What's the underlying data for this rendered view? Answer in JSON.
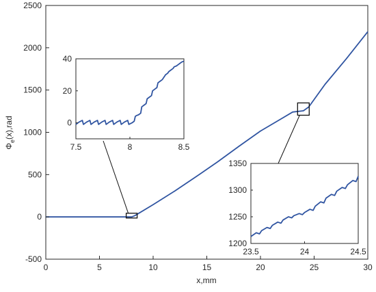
{
  "chart_data": [
    {
      "id": "main",
      "type": "line",
      "xlabel": "x,mm",
      "ylabel": "Φe(x),rad",
      "ylabel_parts": {
        "main": "Φ",
        "sub": "e",
        "tail": "(x),rad"
      },
      "xlim": [
        0,
        30
      ],
      "ylim": [
        -500,
        2500
      ],
      "xticks": [
        0,
        5,
        10,
        15,
        20,
        25,
        30
      ],
      "yticks": [
        -500,
        0,
        500,
        1000,
        1500,
        2000,
        2500
      ],
      "xtick_labels": [
        "0",
        "5",
        "10",
        "15",
        "20",
        "25",
        "30"
      ],
      "ytick_labels": [
        "-500",
        "0",
        "500",
        "1000",
        "1500",
        "2000",
        "2500"
      ],
      "series": [
        {
          "color": "#2f54a1",
          "x": [
            0,
            8.0,
            8.3,
            10,
            12,
            14,
            16,
            18,
            20,
            22,
            23,
            24,
            24.5,
            26,
            28,
            30
          ],
          "y": [
            0,
            0,
            15,
            145,
            305,
            475,
            650,
            835,
            1015,
            1165,
            1240,
            1255,
            1300,
            1565,
            1870,
            2190
          ]
        }
      ],
      "zoom_regions": [
        {
          "xlim": [
            7.5,
            8.5
          ],
          "ylim": [
            -10,
            40
          ]
        },
        {
          "xlim": [
            23.5,
            24.5
          ],
          "ylim": [
            1200,
            1350
          ]
        }
      ]
    },
    {
      "id": "inset-1",
      "type": "line",
      "xlim": [
        7.5,
        8.5
      ],
      "ylim": [
        -10,
        40
      ],
      "xticks": [
        7.5,
        8,
        8.5
      ],
      "yticks": [
        0,
        20,
        40
      ],
      "xtick_labels": [
        "7.5",
        "8",
        "8.5"
      ],
      "ytick_labels": [
        "0",
        "20",
        "40"
      ],
      "series": [
        {
          "color": "#2f54a1",
          "x": [
            7.5,
            7.53,
            7.56,
            7.57,
            7.6,
            7.63,
            7.64,
            7.67,
            7.7,
            7.71,
            7.74,
            7.77,
            7.78,
            7.81,
            7.84,
            7.85,
            7.88,
            7.91,
            7.92,
            7.95,
            7.98,
            7.99,
            8.02,
            8.04,
            8.05,
            8.06,
            8.08,
            8.1,
            8.11,
            8.13,
            8.15,
            8.16,
            8.18,
            8.2,
            8.21,
            8.23,
            8.25,
            8.26,
            8.28,
            8.3,
            8.31,
            8.33,
            8.35,
            8.36,
            8.38,
            8.4,
            8.41,
            8.43,
            8.45,
            8.46,
            8.48,
            8.5
          ],
          "y": [
            -1,
            0.5,
            1.5,
            -1,
            0.5,
            1.5,
            -1,
            0.5,
            1.5,
            -1,
            0.5,
            1.5,
            -1,
            0.5,
            1.5,
            -1,
            0.5,
            1.5,
            -1,
            0.5,
            1.5,
            -1,
            0,
            1,
            4,
            4.5,
            5,
            6,
            10,
            11,
            12,
            15,
            16,
            17,
            20,
            21,
            22,
            25,
            26,
            27,
            28,
            30,
            31,
            32,
            33,
            34,
            35,
            35.5,
            36.5,
            37,
            38,
            38.5
          ]
        }
      ]
    },
    {
      "id": "inset-2",
      "type": "line",
      "xlim": [
        23.5,
        24.5
      ],
      "ylim": [
        1200,
        1350
      ],
      "xticks": [
        23.5,
        24,
        24.5
      ],
      "yticks": [
        1200,
        1250,
        1300,
        1350
      ],
      "xtick_labels": [
        "23.5",
        "24",
        "24.5"
      ],
      "ytick_labels": [
        "1200",
        "1250",
        "1300",
        "1350"
      ],
      "series": [
        {
          "color": "#2f54a1",
          "x": [
            23.5,
            23.55,
            23.58,
            23.6,
            23.65,
            23.68,
            23.7,
            23.75,
            23.78,
            23.8,
            23.85,
            23.88,
            23.9,
            23.95,
            23.98,
            24.0,
            24.05,
            24.08,
            24.1,
            24.15,
            24.18,
            24.2,
            24.25,
            24.28,
            24.3,
            24.35,
            24.38,
            24.4,
            24.45,
            24.48,
            24.5
          ],
          "y": [
            1213,
            1220,
            1218,
            1224,
            1230,
            1228,
            1234,
            1240,
            1238,
            1244,
            1250,
            1248,
            1252,
            1256,
            1254,
            1258,
            1264,
            1262,
            1270,
            1278,
            1276,
            1285,
            1292,
            1290,
            1298,
            1305,
            1303,
            1310,
            1318,
            1316,
            1326
          ]
        }
      ]
    }
  ]
}
